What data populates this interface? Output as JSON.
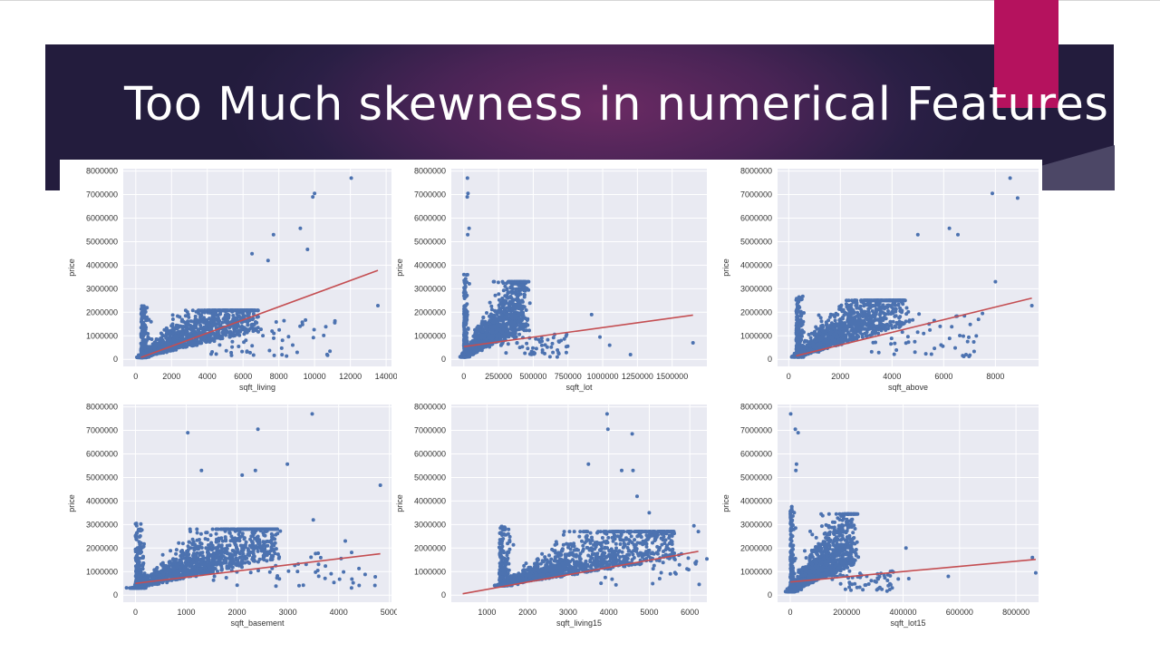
{
  "slide": {
    "title": "Too Much skewness in numerical Features"
  },
  "colors": {
    "banner": "#2a1f45",
    "accent": "#b5125e",
    "axes_bg": "#e9eaf2",
    "points": "#4c72b0",
    "fit_line": "#c44e52"
  },
  "chart_data": [
    {
      "type": "scatter",
      "xlabel": "sqft_living",
      "ylabel": "price",
      "xlim": [
        -700,
        14300
      ],
      "ylim": [
        -300000,
        8100000
      ],
      "xticks": [
        0,
        2000,
        4000,
        6000,
        8000,
        10000,
        12000,
        14000
      ],
      "yticks": [
        0,
        1000000,
        2000000,
        3000000,
        4000000,
        5000000,
        6000000,
        7000000,
        8000000
      ],
      "fit_line": [
        [
          290,
          80000
        ],
        [
          13540,
          3780000
        ]
      ],
      "outliers": [
        [
          12050,
          7700000
        ],
        [
          10000,
          7050000
        ],
        [
          9900,
          6900000
        ],
        [
          9200,
          5570000
        ],
        [
          9600,
          4670000
        ],
        [
          13540,
          2280000
        ],
        [
          7700,
          5300000
        ],
        [
          6500,
          4490000
        ],
        [
          7400,
          4200000
        ]
      ],
      "cloud": {
        "anchor": [
          290,
          80000
        ],
        "length": 6500,
        "y_center": 1000000,
        "y_spread": 2000000
      }
    },
    {
      "type": "scatter",
      "xlabel": "sqft_lot",
      "ylabel": "price",
      "xlim": [
        -90000,
        1750000
      ],
      "ylim": [
        -300000,
        8100000
      ],
      "xticks": [
        0,
        250000,
        500000,
        750000,
        1000000,
        1250000,
        1500000
      ],
      "yticks": [
        0,
        1000000,
        2000000,
        3000000,
        4000000,
        5000000,
        6000000,
        7000000,
        8000000
      ],
      "fit_line": [
        [
          520,
          540000
        ],
        [
          1650000,
          1880000
        ]
      ],
      "outliers": [
        [
          26000,
          7700000
        ],
        [
          30000,
          7050000
        ],
        [
          25000,
          6900000
        ],
        [
          38000,
          5570000
        ],
        [
          28000,
          5300000
        ],
        [
          920000,
          1900000
        ],
        [
          1050000,
          600000
        ],
        [
          1650000,
          700000
        ],
        [
          1200000,
          200000
        ],
        [
          980000,
          950000
        ],
        [
          700000,
          800000
        ]
      ],
      "cloud": {
        "anchor": [
          0,
          100000
        ],
        "length": 450000,
        "y_center": 600000,
        "y_spread": 3200000
      }
    },
    {
      "type": "scatter",
      "xlabel": "sqft_above",
      "ylabel": "price",
      "xlim": [
        -430,
        9670
      ],
      "ylim": [
        -300000,
        8100000
      ],
      "xticks": [
        0,
        2000,
        4000,
        6000,
        8000
      ],
      "yticks": [
        0,
        1000000,
        2000000,
        3000000,
        4000000,
        5000000,
        6000000,
        7000000,
        8000000
      ],
      "fit_line": [
        [
          290,
          150000
        ],
        [
          9410,
          2600000
        ]
      ],
      "outliers": [
        [
          8570,
          7700000
        ],
        [
          7880,
          7050000
        ],
        [
          8860,
          6850000
        ],
        [
          6220,
          5570000
        ],
        [
          6550,
          5300000
        ],
        [
          5000,
          5300000
        ],
        [
          9410,
          2280000
        ],
        [
          8000,
          3300000
        ],
        [
          7500,
          1950000
        ],
        [
          6800,
          1850000
        ]
      ],
      "cloud": {
        "anchor": [
          290,
          100000
        ],
        "length": 4200,
        "y_center": 1200000,
        "y_spread": 2400000
      }
    },
    {
      "type": "scatter",
      "xlabel": "sqft_basement",
      "ylabel": "price",
      "xlim": [
        -240,
        5040
      ],
      "ylim": [
        -300000,
        8100000
      ],
      "xticks": [
        0,
        1000,
        2000,
        3000,
        4000,
        5000
      ],
      "yticks": [
        0,
        1000000,
        2000000,
        3000000,
        4000000,
        5000000,
        6000000,
        7000000,
        8000000
      ],
      "fit_line": [
        [
          0,
          500000
        ],
        [
          4820,
          1760000
        ]
      ],
      "outliers": [
        [
          3480,
          7700000
        ],
        [
          2410,
          7050000
        ],
        [
          1030,
          6900000
        ],
        [
          2990,
          5570000
        ],
        [
          2360,
          5300000
        ],
        [
          1300,
          5300000
        ],
        [
          4820,
          4670000
        ],
        [
          3500,
          3200000
        ],
        [
          4130,
          2300000
        ],
        [
          2100,
          5100000
        ]
      ],
      "cloud": {
        "anchor": [
          0,
          300000
        ],
        "length": 2800,
        "y_center": 1000000,
        "y_spread": 2500000
      }
    },
    {
      "type": "scatter",
      "xlabel": "sqft_living15",
      "ylabel": "price",
      "xlim": [
        120,
        6420
      ],
      "ylim": [
        -300000,
        8100000
      ],
      "xticks": [
        1000,
        2000,
        3000,
        4000,
        5000,
        6000
      ],
      "yticks": [
        0,
        1000000,
        2000000,
        3000000,
        4000000,
        5000000,
        6000000,
        7000000,
        8000000
      ],
      "fit_line": [
        [
          400,
          60000
        ],
        [
          6210,
          1860000
        ]
      ],
      "outliers": [
        [
          3960,
          7700000
        ],
        [
          3980,
          7050000
        ],
        [
          4580,
          6850000
        ],
        [
          3500,
          5570000
        ],
        [
          4320,
          5300000
        ],
        [
          4600,
          5300000
        ],
        [
          6100,
          2950000
        ],
        [
          6210,
          2700000
        ],
        [
          5000,
          3500000
        ],
        [
          4700,
          4200000
        ]
      ],
      "cloud": {
        "anchor": [
          1300,
          400000
        ],
        "length": 4300,
        "y_center": 900000,
        "y_spread": 2300000
      }
    },
    {
      "type": "scatter",
      "xlabel": "sqft_lot15",
      "ylabel": "price",
      "xlim": [
        -45000,
        880000
      ],
      "ylim": [
        -300000,
        8100000
      ],
      "xticks": [
        0,
        200000,
        400000,
        600000,
        800000
      ],
      "yticks": [
        0,
        1000000,
        2000000,
        3000000,
        4000000,
        5000000,
        6000000,
        7000000,
        8000000
      ],
      "fit_line": [
        [
          650,
          560000
        ],
        [
          870000,
          1520000
        ]
      ],
      "outliers": [
        [
          1500,
          7700000
        ],
        [
          18000,
          7050000
        ],
        [
          28000,
          6900000
        ],
        [
          22000,
          5570000
        ],
        [
          20000,
          5300000
        ],
        [
          410000,
          2000000
        ],
        [
          560000,
          800000
        ],
        [
          858000,
          1600000
        ],
        [
          870000,
          950000
        ],
        [
          420000,
          700000
        ],
        [
          200000,
          2200000
        ]
      ],
      "cloud": {
        "anchor": [
          0,
          150000
        ],
        "length": 230000,
        "y_center": 600000,
        "y_spread": 3300000
      }
    }
  ]
}
